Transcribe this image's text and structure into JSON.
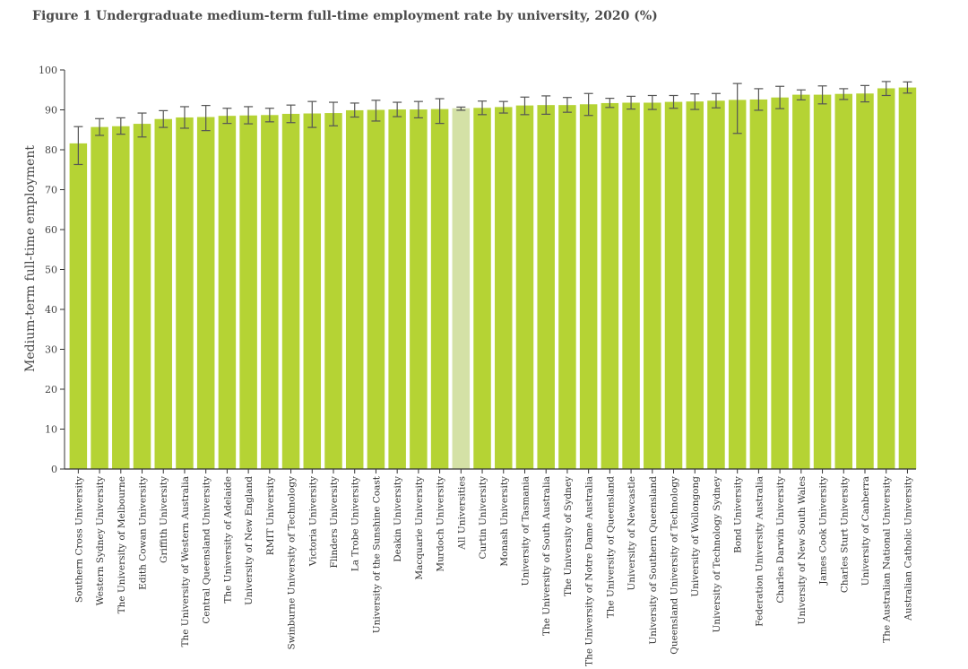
{
  "chart_data": {
    "type": "bar",
    "title": "Figure 1 Undergraduate medium-term full-time employment rate by university, 2020 (%)",
    "xlabel": "",
    "ylabel": "Medium-term full-time employment",
    "ylim": [
      0,
      100
    ],
    "yticks": [
      0,
      10,
      20,
      30,
      40,
      50,
      60,
      70,
      80,
      90,
      100
    ],
    "bar_color": "#b5d334",
    "highlight_color": "#d4e1a6",
    "highlight_category": "All Universities",
    "error_color": "#555555",
    "categories": [
      "Southern Cross University",
      "Western Sydney University",
      "The University of Melbourne",
      "Edith Cowan University",
      "Griffith University",
      "The University of Western Australia",
      "Central Queensland University",
      "The University of Adelaide",
      "University of New England",
      "RMIT University",
      "Swinburne University of Technology",
      "Victoria University",
      "Flinders University",
      "La Trobe University",
      "University of the Sunshine Coast",
      "Deakin University",
      "Macquarie University",
      "Murdoch University",
      "All Universities",
      "Curtin University",
      "Monash University",
      "University of Tasmania",
      "The University of South Australia",
      "The University of Sydney",
      "The University of Notre Dame Australia",
      "The University of Queensland",
      "University of Newcastle",
      "University of Southern Queensland",
      "Queensland University of Technology",
      "University of Wollongong",
      "University of Technology Sydney",
      "Bond University",
      "Federation University Australia",
      "Charles Darwin University",
      "University of New South Wales",
      "James Cook University",
      "Charles Sturt University",
      "University of Canberra",
      "The Australian National University",
      "Australian Catholic University"
    ],
    "values": [
      81.6,
      85.7,
      85.9,
      86.5,
      87.7,
      88.1,
      88.2,
      88.5,
      88.6,
      88.7,
      89.0,
      89.1,
      89.2,
      89.9,
      90.0,
      90.1,
      90.1,
      90.2,
      90.4,
      90.5,
      90.7,
      91.1,
      91.2,
      91.2,
      91.4,
      91.7,
      91.8,
      91.8,
      92.0,
      92.1,
      92.3,
      92.5,
      92.6,
      93.1,
      93.8,
      93.8,
      94.0,
      94.1,
      95.4,
      95.6
    ],
    "error_low": [
      76.3,
      83.6,
      83.9,
      83.2,
      85.6,
      85.4,
      84.8,
      86.6,
      86.5,
      87.0,
      86.8,
      85.6,
      86.0,
      88.2,
      87.2,
      88.3,
      88.0,
      86.6,
      89.9,
      88.8,
      89.2,
      88.8,
      88.9,
      89.4,
      88.6,
      90.6,
      90.2,
      90.1,
      90.4,
      90.1,
      90.5,
      84.1,
      89.9,
      90.3,
      92.5,
      91.5,
      92.6,
      92.0,
      93.6,
      94.2
    ],
    "error_high": [
      85.8,
      87.8,
      88.0,
      89.2,
      89.8,
      90.8,
      91.1,
      90.4,
      90.8,
      90.4,
      91.2,
      92.1,
      91.9,
      91.7,
      92.4,
      91.9,
      92.1,
      92.8,
      90.7,
      92.2,
      92.1,
      93.2,
      93.5,
      93.1,
      94.1,
      92.9,
      93.4,
      93.6,
      93.6,
      94.0,
      94.1,
      96.6,
      95.3,
      95.9,
      95.0,
      96.0,
      95.3,
      96.1,
      97.1,
      97.0
    ]
  }
}
